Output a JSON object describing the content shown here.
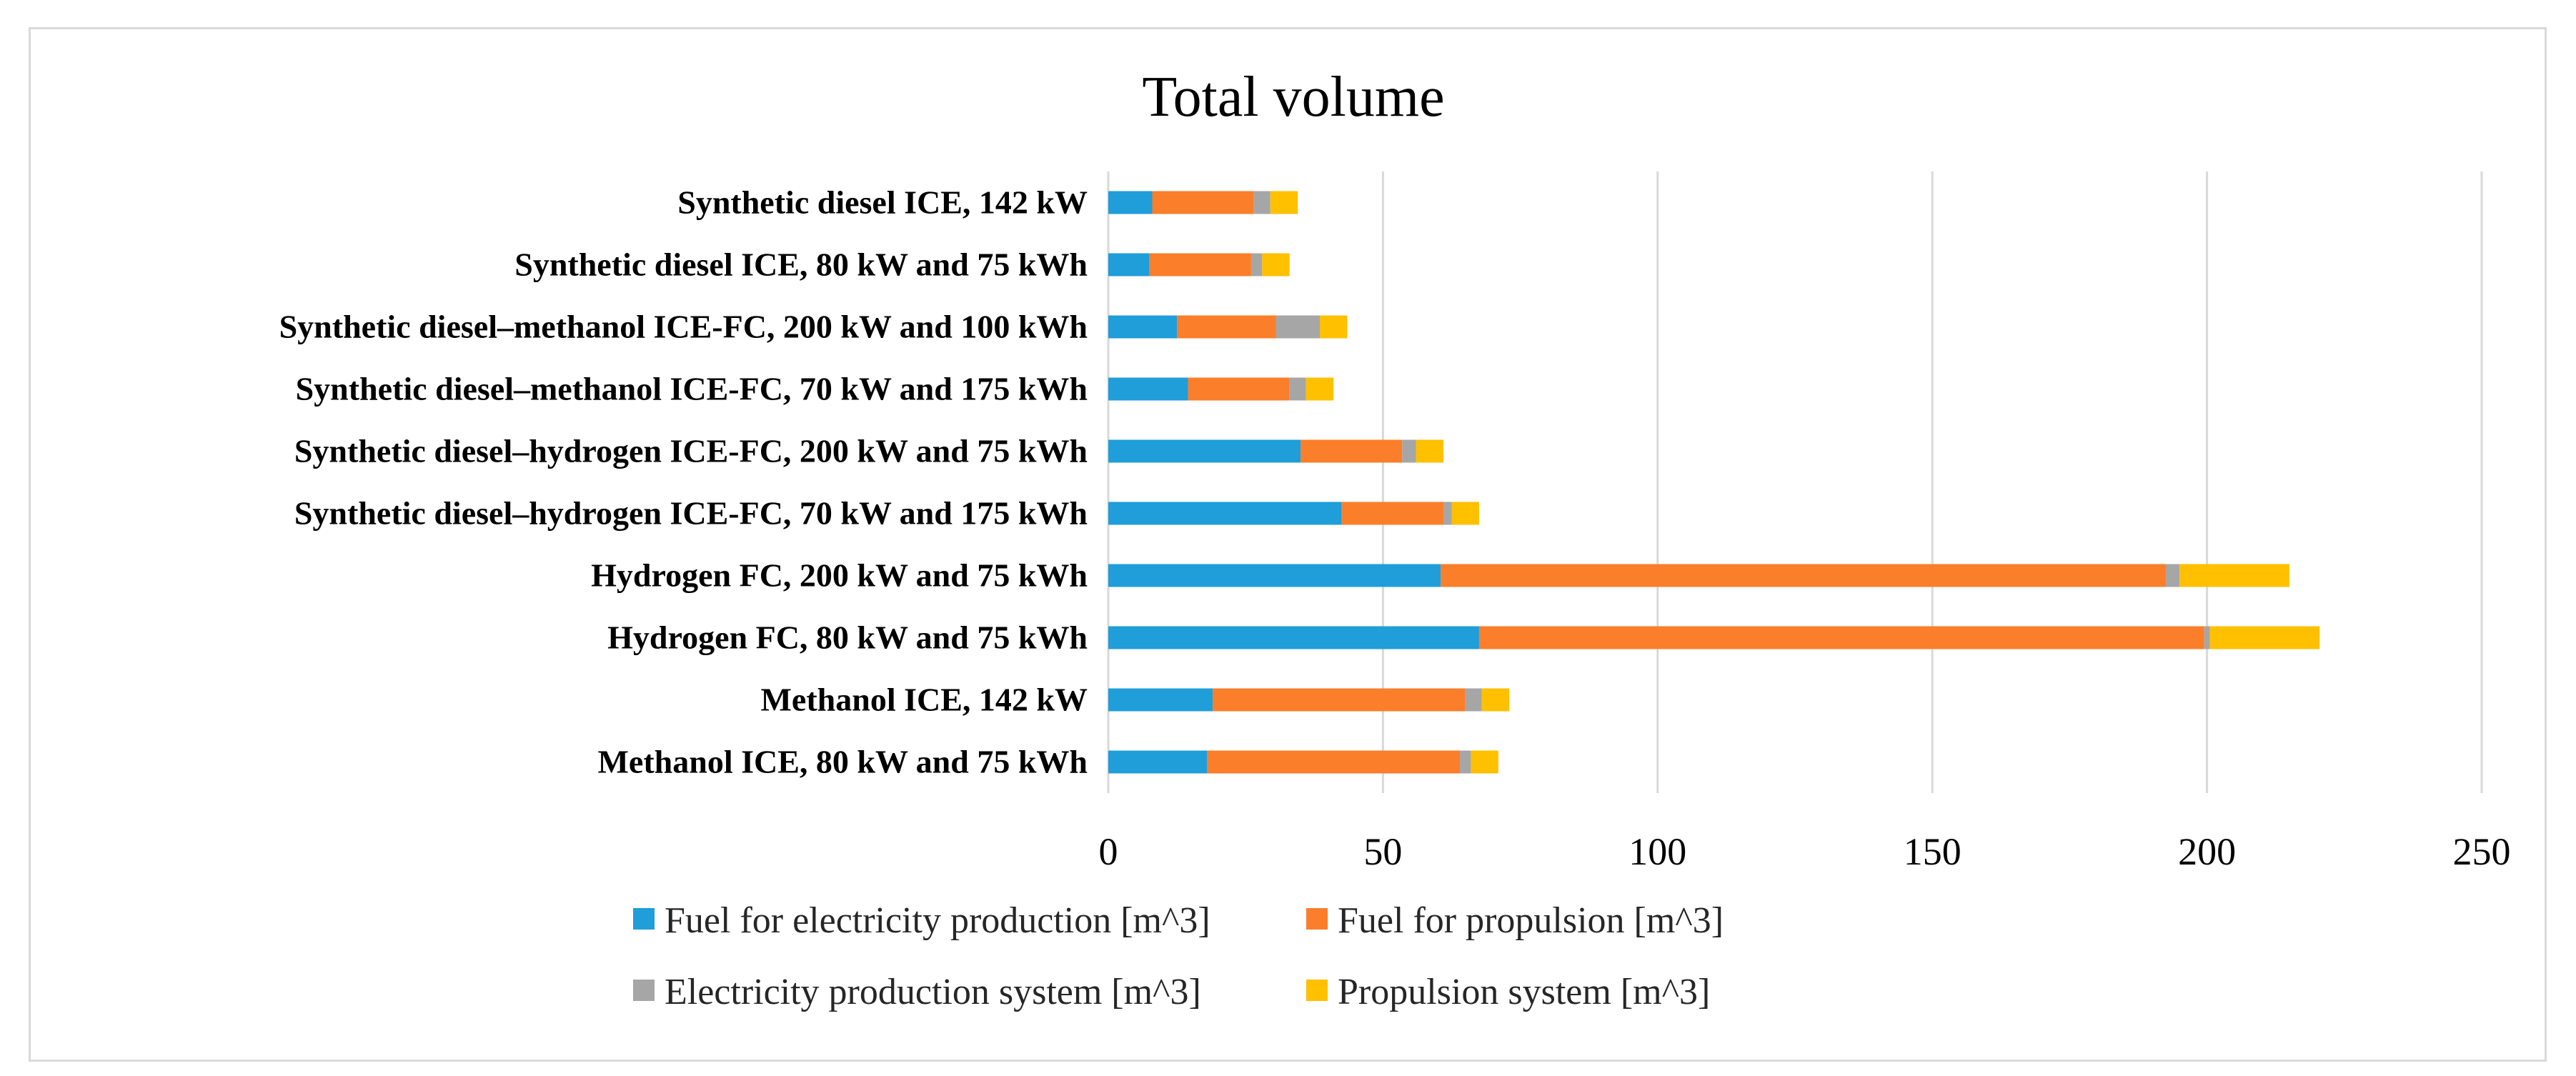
{
  "chart_data": {
    "type": "bar",
    "orientation": "horizontal",
    "stacked": true,
    "title": "Total volume",
    "xlabel": "",
    "ylabel": "",
    "xlim": [
      0,
      250
    ],
    "xticks": [
      0,
      50,
      100,
      150,
      200,
      250
    ],
    "grid": "vertical",
    "legend_position": "bottom",
    "categories": [
      "Methanol ICE, 80 kW and 75 kWh",
      "Methanol ICE, 142 kW",
      "Hydrogen FC, 80 kW and 75 kWh",
      "Hydrogen FC, 200 kW and 75 kWh",
      "Synthetic diesel–hydrogen ICE-FC, 70 kW and 175 kWh",
      "Synthetic diesel–hydrogen ICE-FC, 200 kW and 75 kWh",
      "Synthetic diesel–methanol ICE-FC, 70 kW and 175 kWh",
      "Synthetic diesel–methanol ICE-FC, 200 kW and 100 kWh",
      "Synthetic diesel ICE, 80 kW and 75 kWh",
      "Synthetic diesel ICE, 142 kW"
    ],
    "series": [
      {
        "name": "Fuel for electricity production [m^3]",
        "color": "#1f9ed9",
        "values": [
          18,
          19,
          67.5,
          60.5,
          42.5,
          35,
          14.5,
          12.5,
          7.5,
          8
        ]
      },
      {
        "name": "Fuel for propulsion [m^3]",
        "color": "#fb7e2a",
        "values": [
          46,
          46,
          132,
          132,
          18.5,
          18.5,
          18.5,
          18,
          18.5,
          18.5
        ]
      },
      {
        "name": "Electricity production system [m^3]",
        "color": "#a6a6a6",
        "values": [
          2,
          3,
          1,
          2.5,
          1.5,
          2.5,
          3,
          8,
          2,
          3
        ]
      },
      {
        "name": "Propulsion system [m^3]",
        "color": "#ffc000",
        "values": [
          5,
          5,
          20,
          20,
          5,
          5,
          5,
          5,
          5,
          5
        ]
      }
    ]
  }
}
